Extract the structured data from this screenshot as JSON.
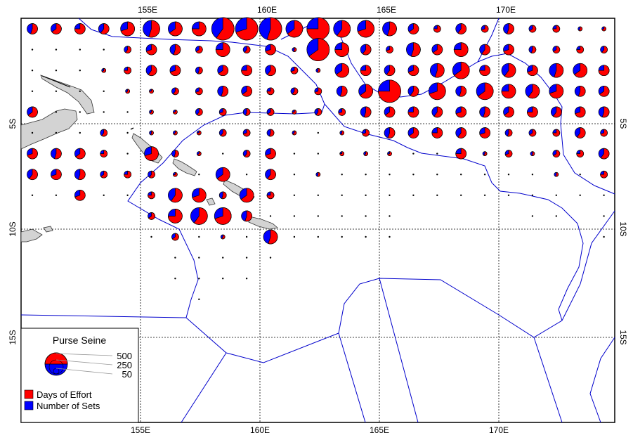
{
  "map": {
    "x_ticks": [
      "155E",
      "160E",
      "165E",
      "170E"
    ],
    "y_ticks": [
      "5S",
      "10S",
      "15S"
    ],
    "legend": {
      "title": "Purse Seine",
      "size_labels": [
        "500",
        "250",
        "50"
      ],
      "items": [
        {
          "label": "Days of Effort",
          "color": "#ff0000"
        },
        {
          "label": "Number of Sets",
          "color": "#0000ff"
        }
      ]
    }
  },
  "colors": {
    "effort": "#ff0000",
    "sets": "#0000ff",
    "boundary": "#0000cc",
    "land": "#d3d3d3"
  }
}
